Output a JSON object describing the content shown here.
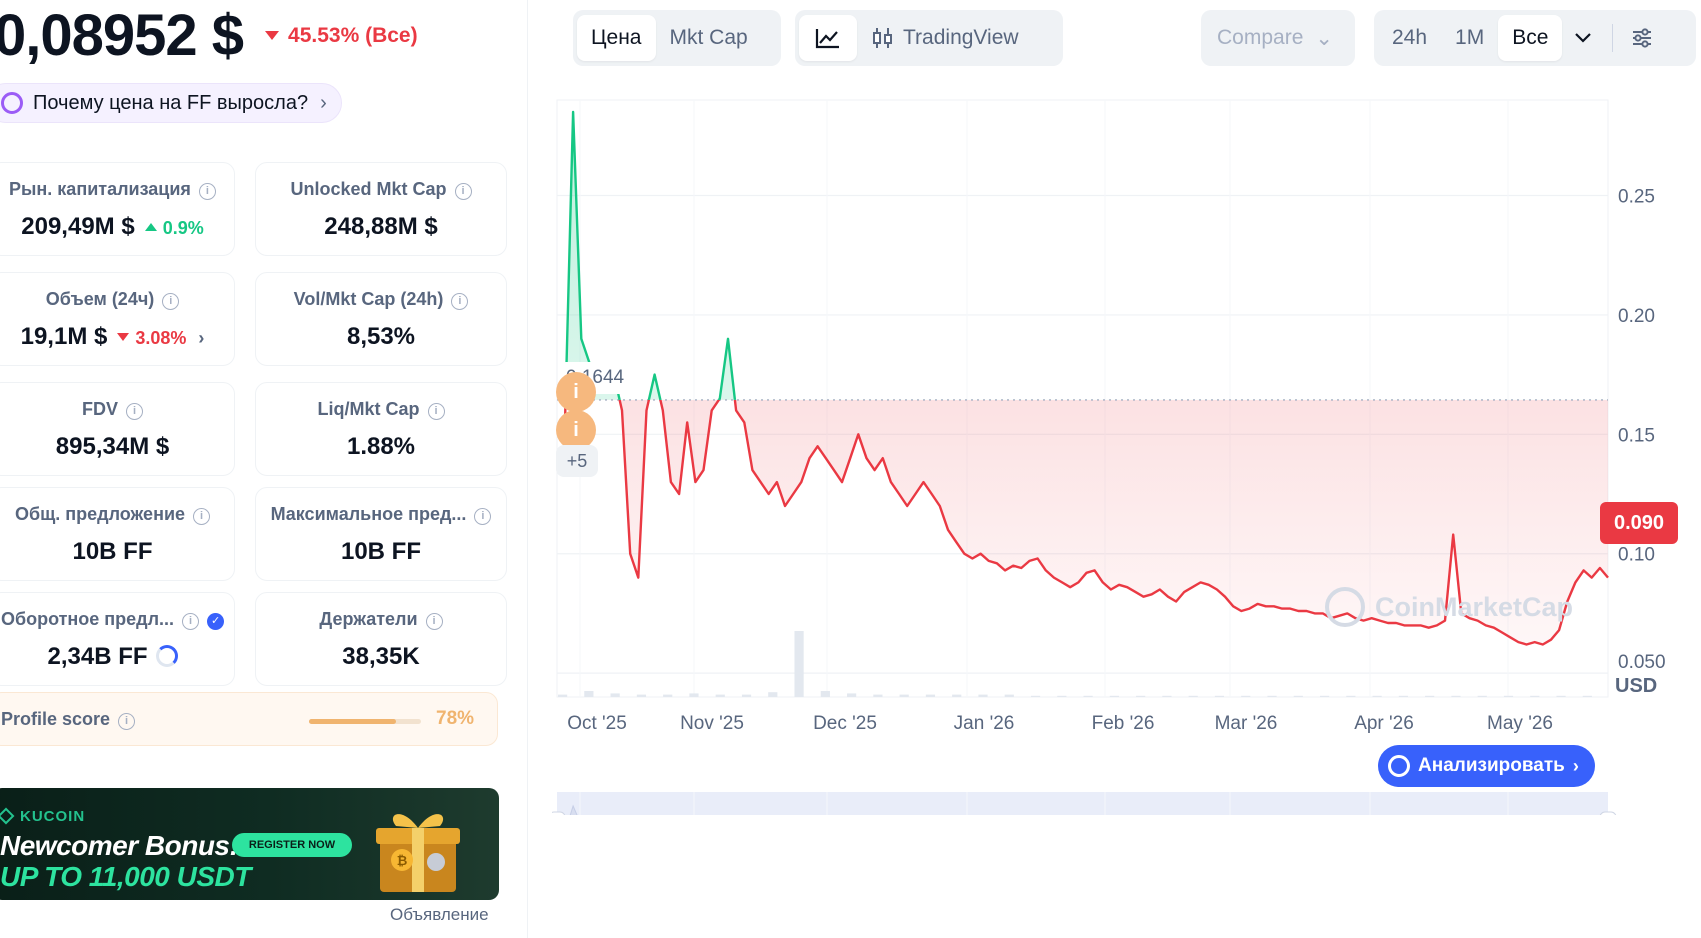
{
  "header": {
    "price": "0,08952 $",
    "change": "45.53% (Все)",
    "why_label": "Почему цена на FF выросла?"
  },
  "stats": [
    {
      "label": "Рын. капитализация",
      "value": "209,49M $",
      "change": "0.9%",
      "dir": "up"
    },
    {
      "label": "Unlocked Mkt Cap",
      "value": "248,88M $"
    },
    {
      "label": "Объем (24ч)",
      "value": "19,1M $",
      "change": "3.08%",
      "dir": "down"
    },
    {
      "label": "Vol/Mkt Cap (24h)",
      "value": "8,53%"
    },
    {
      "label": "FDV",
      "value": "895,34M $"
    },
    {
      "label": "Liq/Mkt Cap",
      "value": "1.88%"
    },
    {
      "label": "Общ. предложение",
      "value": "10B FF"
    },
    {
      "label": "Максимальное пред...",
      "value": "10B FF"
    },
    {
      "label": "Оборотное предл...",
      "value": "2,34B FF"
    },
    {
      "label": "Держатели",
      "value": "38,35K"
    }
  ],
  "profile": {
    "label": "Profile score",
    "value": "78%",
    "score": 0.78
  },
  "ad": {
    "brand": "KUCOIN",
    "headline": "Newcomer Bonus:",
    "subline": "UP TO 11,000 USDT",
    "cta": "REGISTER NOW",
    "caption": "Объявление"
  },
  "toolbar": {
    "price_tab": "Цена",
    "mktcap_tab": "Mkt Cap",
    "tradingview": "TradingView",
    "compare": "Compare",
    "ranges": [
      "24h",
      "1M",
      "Все"
    ],
    "active_range": "Все"
  },
  "chart_data": {
    "type": "area",
    "y_ticks": [
      "0.25",
      "0.20",
      "0.15",
      "0.10",
      "0.050"
    ],
    "x_labels": [
      "Oct '25",
      "Nov '25",
      "Dec '25",
      "Jan '26",
      "Feb '26",
      "Mar '26",
      "Apr '26",
      "May '26"
    ],
    "unit": "USD",
    "reference_value": "0.1644",
    "current_value": "0.090",
    "ylim": [
      0,
      0.28
    ],
    "ref": 0.1644,
    "series": [
      {
        "values": [
          0.155,
          0.285,
          0.19,
          0.18,
          0.175,
          0.17,
          0.175,
          0.16,
          0.1,
          0.09,
          0.16,
          0.175,
          0.16,
          0.13,
          0.125,
          0.155,
          0.13,
          0.135,
          0.16,
          0.165,
          0.19,
          0.16,
          0.155,
          0.135,
          0.13,
          0.125,
          0.13,
          0.12,
          0.125,
          0.13,
          0.14,
          0.145,
          0.14,
          0.135,
          0.13,
          0.14,
          0.15,
          0.14,
          0.135,
          0.14,
          0.13,
          0.125,
          0.12,
          0.125,
          0.13,
          0.125,
          0.12,
          0.11,
          0.105,
          0.1,
          0.098,
          0.1,
          0.097,
          0.096,
          0.093,
          0.095,
          0.094,
          0.097,
          0.098,
          0.093,
          0.09,
          0.088,
          0.086,
          0.088,
          0.092,
          0.093,
          0.088,
          0.085,
          0.087,
          0.086,
          0.084,
          0.082,
          0.083,
          0.085,
          0.082,
          0.08,
          0.084,
          0.086,
          0.088,
          0.087,
          0.085,
          0.082,
          0.078,
          0.076,
          0.077,
          0.079,
          0.078,
          0.078,
          0.077,
          0.077,
          0.076,
          0.076,
          0.075,
          0.075,
          0.073,
          0.074,
          0.075,
          0.073,
          0.072,
          0.073,
          0.072,
          0.071,
          0.071,
          0.07,
          0.07,
          0.07,
          0.069,
          0.07,
          0.072,
          0.108,
          0.075,
          0.073,
          0.072,
          0.07,
          0.069,
          0.067,
          0.065,
          0.063,
          0.062,
          0.063,
          0.062,
          0.064,
          0.068,
          0.08,
          0.088,
          0.093,
          0.09,
          0.094,
          0.09
        ]
      }
    ],
    "volume": [
      0.02,
      0.05,
      0.03,
      0.02,
      0.02,
      0.03,
      0.02,
      0.02,
      0.04,
      0.55,
      0.05,
      0.03,
      0.02,
      0.02,
      0.02,
      0.02,
      0.02,
      0.02,
      0.01,
      0.01,
      0.01,
      0.01,
      0.01,
      0.01,
      0.01,
      0.01,
      0.01,
      0.01,
      0.01,
      0.01,
      0.01,
      0.01,
      0.01,
      0.01,
      0.01,
      0.01,
      0.01,
      0.01,
      0.01,
      0.01
    ]
  }
}
